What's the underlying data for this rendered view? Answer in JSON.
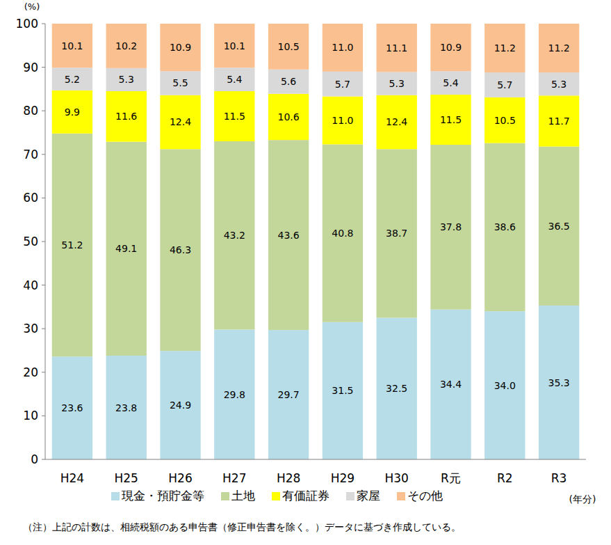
{
  "chart_data": {
    "type": "bar",
    "stacked": true,
    "data_labels": true,
    "grid": false,
    "legend": "bottom",
    "y_label": "(%)",
    "x_label": "(年分)",
    "note": "（注）上記の計数は、相続税額のある申告書（修正申告書を除く。）データに基づき作成している。",
    "categories": [
      "H24",
      "H25",
      "H26",
      "H27",
      "H28",
      "H29",
      "H30",
      "R元",
      "R2",
      "R3"
    ],
    "ylim": [
      0,
      100
    ],
    "yticks": [
      0,
      10,
      20,
      30,
      40,
      50,
      60,
      70,
      80,
      90,
      100
    ],
    "series": [
      {
        "name": "現金・預貯金等",
        "color": "#b7dee8",
        "values": [
          23.6,
          23.8,
          24.9,
          29.8,
          29.7,
          31.5,
          32.5,
          34.4,
          34.0,
          35.3
        ],
        "value_labels": [
          "23.6",
          "23.8",
          "24.9",
          "29.8",
          "29.7",
          "31.5",
          "32.5",
          "34.4",
          "34.0",
          "35.3"
        ]
      },
      {
        "name": "土地",
        "color": "#c4d79b",
        "values": [
          51.2,
          49.1,
          46.3,
          43.2,
          43.6,
          40.8,
          38.7,
          37.8,
          38.6,
          36.5
        ],
        "value_labels": [
          "51.2",
          "49.1",
          "46.3",
          "43.2",
          "43.6",
          "40.8",
          "38.7",
          "37.8",
          "38.6",
          "36.5"
        ]
      },
      {
        "name": "有価証券",
        "color": "#ffff00",
        "values": [
          9.9,
          11.6,
          12.4,
          11.5,
          10.6,
          11.0,
          12.4,
          11.5,
          10.5,
          11.7
        ],
        "value_labels": [
          "9.9",
          "11.6",
          "12.4",
          "11.5",
          "10.6",
          "11.0",
          "12.4",
          "11.5",
          "10.5",
          "11.7"
        ]
      },
      {
        "name": "家屋",
        "color": "#d9d9d9",
        "values": [
          5.2,
          5.3,
          5.5,
          5.4,
          5.6,
          5.7,
          5.3,
          5.4,
          5.7,
          5.3
        ],
        "value_labels": [
          "5.2",
          "5.3",
          "5.5",
          "5.4",
          "5.6",
          "5.7",
          "5.3",
          "5.4",
          "5.7",
          "5.3"
        ]
      },
      {
        "name": "その他",
        "color": "#fac090",
        "values": [
          10.1,
          10.2,
          10.9,
          10.1,
          10.5,
          11.0,
          11.1,
          10.9,
          11.2,
          11.2
        ],
        "value_labels": [
          "10.1",
          "10.2",
          "10.9",
          "10.1",
          "10.5",
          "11.0",
          "11.1",
          "10.9",
          "11.2",
          "11.2"
        ]
      }
    ]
  }
}
